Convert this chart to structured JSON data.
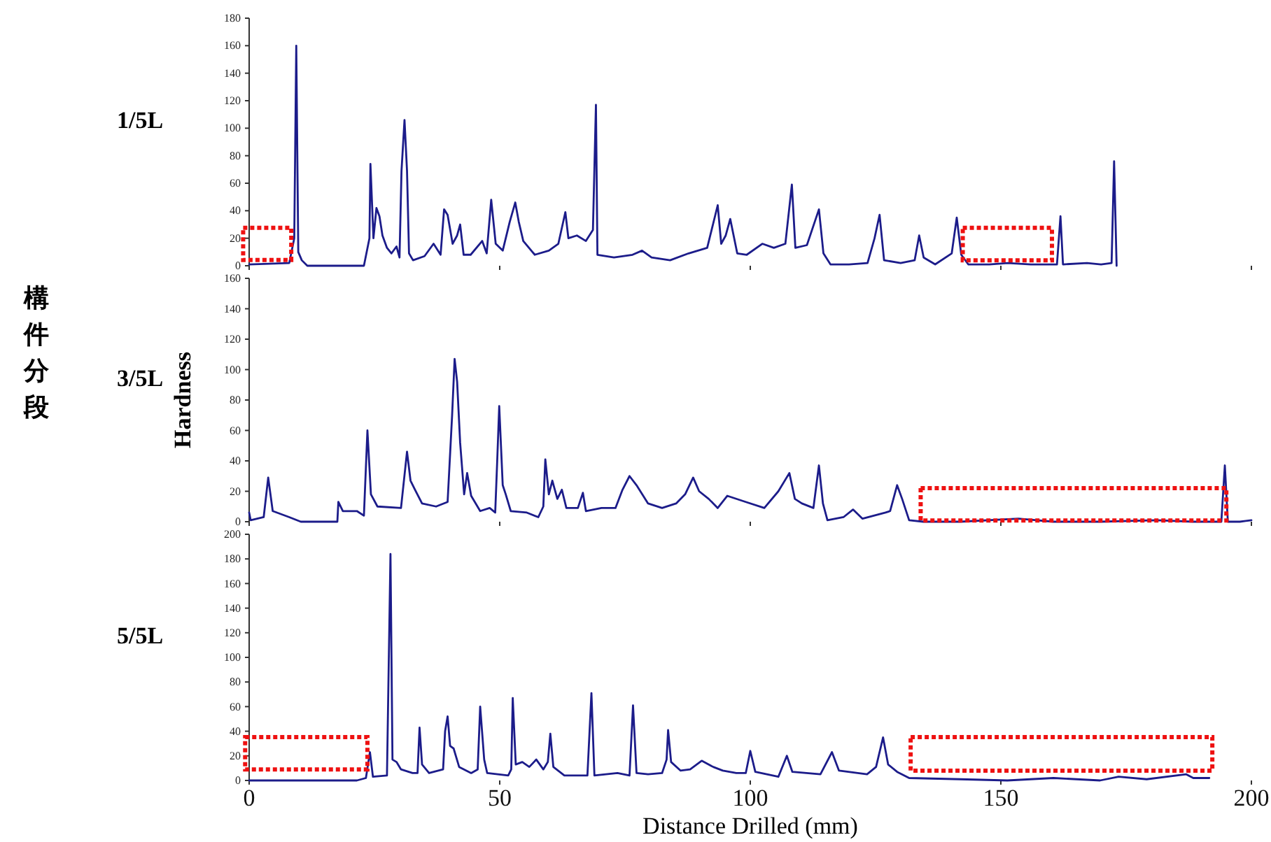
{
  "chart_data": [
    {
      "type": "line",
      "title": "1/5L",
      "xlim": [
        0,
        200
      ],
      "xticks": [
        0,
        50,
        100,
        150,
        200
      ],
      "ylim": [
        0,
        180
      ],
      "yticks": [
        0,
        20,
        40,
        60,
        80,
        100,
        120,
        140,
        160,
        180
      ],
      "tick_labels": "y",
      "grid": false,
      "marker": "none",
      "line_style": "solid",
      "series": [
        {
          "color": "#1c1c8a",
          "x": [
            0,
            8,
            9,
            9.4,
            9.8,
            10.5,
            11.6,
            22.9,
            24,
            24.2,
            24.8,
            25.4,
            26,
            26.6,
            27.5,
            28.4,
            29.4,
            30,
            30.4,
            31,
            31.5,
            31.9,
            32.7,
            35,
            36.8,
            38.2,
            38.9,
            39.6,
            40.6,
            41.5,
            42.1,
            42.8,
            44.2,
            46.5,
            47.4,
            48.3,
            49.2,
            50.6,
            52,
            53.1,
            53.8,
            54.7,
            57,
            59.8,
            61.7,
            63.1,
            63.7,
            65.4,
            67.2,
            68.6,
            69.2,
            69.5,
            72.8,
            76.5,
            78.4,
            80.3,
            84,
            87.7,
            91.4,
            93.5,
            94.2,
            95.1,
            96,
            97.4,
            99.3,
            102.4,
            104.7,
            107,
            108.3,
            109,
            111.3,
            113.7,
            114.6,
            116,
            119.7,
            123.4,
            124.8,
            125.8,
            126.7,
            130,
            132.8,
            133.7,
            134.6,
            136.9,
            140.2,
            141.2,
            142.1,
            143.5,
            147.7,
            151.4,
            156,
            161.2,
            161.9,
            162.4,
            167.2,
            170,
            172.1,
            172.6,
            173.1
          ],
          "values": [
            1,
            2,
            20,
            160,
            10,
            4,
            0,
            0,
            20,
            74,
            20,
            42,
            36,
            22,
            13,
            9,
            14,
            6,
            69,
            106,
            69,
            9,
            4,
            7,
            16,
            8,
            41,
            37,
            16,
            22,
            30,
            8,
            8,
            18,
            9,
            48,
            16,
            11,
            32,
            46,
            32,
            18,
            8,
            11,
            16,
            39,
            20,
            22,
            18,
            26,
            117,
            8,
            6,
            8,
            11,
            6,
            4,
            9,
            13,
            44,
            16,
            22,
            34,
            9,
            8,
            16,
            13,
            16,
            59,
            13,
            15,
            41,
            9,
            1,
            1,
            2,
            20,
            37,
            4,
            2,
            4,
            22,
            6,
            1,
            9,
            35,
            8,
            1,
            1,
            2,
            1,
            1,
            36,
            1,
            2,
            1,
            2,
            76,
            0
          ]
        }
      ]
    },
    {
      "type": "line",
      "title": "3/5L",
      "ylabel": "Hardness",
      "annotations": [
        "構件分段"
      ],
      "xlim": [
        0,
        200
      ],
      "xticks": [
        0,
        50,
        100,
        150,
        200
      ],
      "ylim": [
        0,
        160
      ],
      "yticks": [
        0,
        20,
        40,
        60,
        80,
        100,
        120,
        140,
        160
      ],
      "tick_labels": "y",
      "grid": false,
      "marker": "none",
      "line_style": "solid",
      "series": [
        {
          "color": "#1c1c8a",
          "x": [
            0,
            0.3,
            2.9,
            3.8,
            4.7,
            8,
            10.3,
            17.6,
            17.8,
            18.7,
            21.5,
            22.9,
            23.6,
            24.3,
            25.6,
            30.3,
            31.5,
            32.2,
            33.1,
            34.5,
            37.3,
            39.6,
            40.5,
            41,
            41.5,
            42.1,
            42.9,
            43.5,
            44.3,
            46.1,
            48,
            49.1,
            49.5,
            49.9,
            50.6,
            51.2,
            52.2,
            55.4,
            57.7,
            58.7,
            59.1,
            59.8,
            60.5,
            61.5,
            62.4,
            63.3,
            65.6,
            66.6,
            67.2,
            70.3,
            73.1,
            74.5,
            75.9,
            77.3,
            79.6,
            82.4,
            85.2,
            87,
            88.6,
            89.8,
            91.7,
            93.5,
            95.4,
            99.1,
            102.8,
            105.6,
            107.8,
            108.9,
            110.3,
            112.6,
            113.7,
            114.5,
            115.4,
            118.6,
            120.5,
            122.4,
            127,
            127.9,
            129.3,
            130.3,
            131.7,
            134.5,
            141.9,
            153.5,
            160.5,
            169.8,
            181,
            188.4,
            194,
            194.7,
            195.3,
            197.7,
            200
          ],
          "values": [
            6,
            1,
            3,
            29,
            7,
            3,
            0,
            0,
            13,
            7,
            7,
            4,
            60,
            18,
            10,
            9,
            46,
            27,
            21,
            12,
            10,
            13,
            70,
            107,
            92,
            52,
            18,
            32,
            17,
            7,
            9,
            6,
            40,
            76,
            24,
            18,
            7,
            6,
            3,
            10,
            41,
            18,
            27,
            15,
            21,
            9,
            9,
            19,
            7,
            9,
            9,
            21,
            30,
            24,
            12,
            9,
            12,
            18,
            29,
            20,
            15,
            9,
            17,
            13,
            9,
            20,
            32,
            15,
            12,
            9,
            37,
            12,
            1,
            3,
            8,
            2,
            6,
            7,
            24,
            15,
            1,
            0,
            0,
            2,
            0,
            0,
            1,
            0,
            0,
            37,
            0,
            0,
            1
          ]
        }
      ]
    },
    {
      "type": "line",
      "title": "5/5L",
      "xlabel": "Distance Drilled (mm)",
      "xlim": [
        0,
        200
      ],
      "xticks": [
        0,
        50,
        100,
        150,
        200
      ],
      "ylim": [
        0,
        200
      ],
      "yticks": [
        0,
        20,
        40,
        60,
        80,
        100,
        120,
        140,
        160,
        180,
        200
      ],
      "grid": false,
      "marker": "none",
      "line_style": "solid",
      "series": [
        {
          "color": "#1c1c8a",
          "x": [
            0,
            21.5,
            23.3,
            24.1,
            24.7,
            27.5,
            28.2,
            28.6,
            29.4,
            30.3,
            32.6,
            33.6,
            34,
            34.5,
            35.9,
            38.7,
            39.1,
            39.6,
            40.1,
            40.8,
            41.9,
            44.3,
            45.6,
            46.1,
            46.9,
            47.5,
            51.7,
            52.3,
            52.6,
            53.2,
            54.5,
            55.9,
            57.3,
            58.7,
            59.6,
            60.1,
            60.7,
            62.9,
            67.5,
            68.3,
            68.9,
            73.5,
            75.9,
            76.6,
            77.3,
            79.6,
            82.4,
            83.3,
            83.6,
            84.2,
            86.1,
            88,
            90.3,
            92.6,
            94.5,
            97.2,
            99.1,
            100,
            101,
            105.6,
            107.3,
            108.4,
            114,
            116.3,
            117.7,
            123.3,
            125.1,
            126.5,
            127.5,
            129.3,
            131.7,
            141.9,
            151.3,
            160.5,
            169.8,
            173.5,
            179.1,
            187,
            188.4,
            191.6
          ],
          "values": [
            0,
            0,
            2,
            23,
            3,
            4,
            184,
            17,
            15,
            9,
            6,
            6,
            43,
            13,
            6,
            9,
            40,
            52,
            28,
            26,
            11,
            6,
            9,
            60,
            17,
            6,
            4,
            9,
            67,
            13,
            15,
            11,
            17,
            9,
            15,
            38,
            11,
            4,
            4,
            71,
            4,
            6,
            4,
            61,
            6,
            5,
            6,
            17,
            41,
            15,
            8,
            9,
            16,
            11,
            8,
            6,
            6,
            24,
            7,
            3,
            20,
            7,
            5,
            23,
            8,
            5,
            11,
            35,
            13,
            7,
            2,
            1,
            0,
            2,
            0,
            3,
            1,
            5,
            2,
            2
          ]
        }
      ]
    }
  ]
}
